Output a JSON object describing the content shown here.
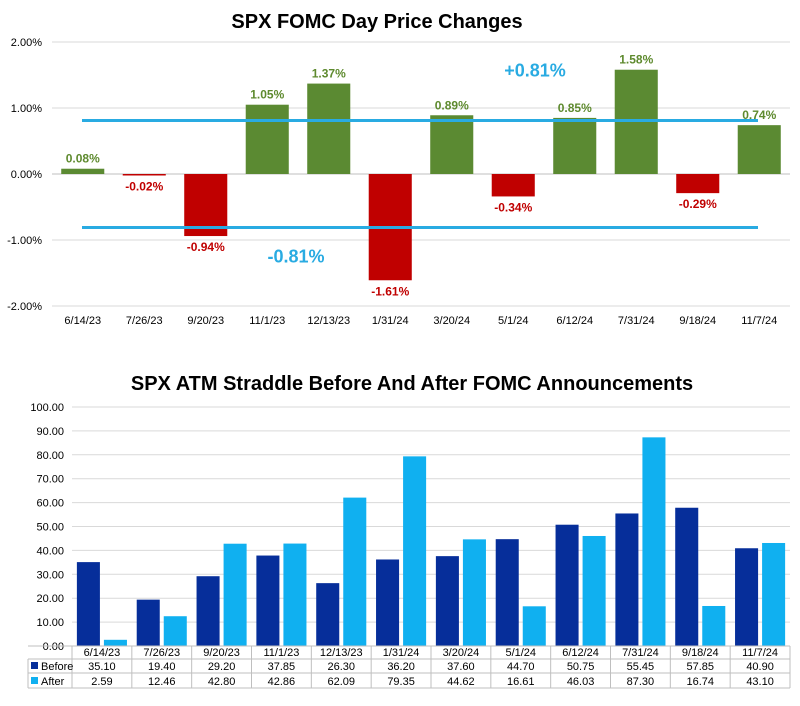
{
  "colors": {
    "positive": "#5b8a32",
    "negative": "#c00000",
    "positive_label": "#5e8a2e",
    "negative_label": "#c00000",
    "ref_line": "#29abe2",
    "ref_text": "#29abe2",
    "before": "#062e9a",
    "after": "#10b0f0",
    "grid": "#d9d9d9",
    "axis": "#bfbfbf"
  },
  "chart_data": [
    {
      "type": "bar",
      "title": "SPX FOMC Day Price Changes",
      "categories": [
        "6/14/23",
        "7/26/23",
        "9/20/23",
        "11/1/23",
        "12/13/23",
        "1/31/24",
        "3/20/24",
        "5/1/24",
        "6/12/24",
        "7/31/24",
        "9/18/24",
        "11/7/24"
      ],
      "values": [
        0.08,
        -0.02,
        -0.94,
        1.05,
        1.37,
        -1.61,
        0.89,
        -0.34,
        0.85,
        1.58,
        -0.29,
        0.74
      ],
      "value_labels": [
        "0.08%",
        "-0.02%",
        "-0.94%",
        "1.05%",
        "1.37%",
        "-1.61%",
        "0.89%",
        "-0.34%",
        "0.85%",
        "1.58%",
        "-0.29%",
        "0.74%"
      ],
      "ylim": [
        -2.0,
        2.0
      ],
      "yticks": [
        2.0,
        1.0,
        0.0,
        -1.0,
        -2.0
      ],
      "ytick_labels": [
        "2.00%",
        "1.00%",
        "0.00%",
        "-1.00%",
        "-2.00%"
      ],
      "reference_lines": [
        {
          "value": 0.81,
          "label": "+0.81%"
        },
        {
          "value": -0.81,
          "label": "-0.81%"
        }
      ],
      "xlabel": "",
      "ylabel": ""
    },
    {
      "type": "bar",
      "title": "SPX ATM Straddle Before And After FOMC Announcements",
      "categories": [
        "6/14/23",
        "7/26/23",
        "9/20/23",
        "11/1/23",
        "12/13/23",
        "1/31/24",
        "3/20/24",
        "5/1/24",
        "6/12/24",
        "7/31/24",
        "9/18/24",
        "11/7/24"
      ],
      "series": [
        {
          "name": "Before",
          "values": [
            35.1,
            19.4,
            29.2,
            37.85,
            26.3,
            36.2,
            37.6,
            44.7,
            50.75,
            55.45,
            57.85,
            40.9
          ],
          "labels": [
            "35.10",
            "19.40",
            "29.20",
            "37.85",
            "26.30",
            "36.20",
            "37.60",
            "44.70",
            "50.75",
            "55.45",
            "57.85",
            "40.90"
          ]
        },
        {
          "name": "After",
          "values": [
            2.59,
            12.46,
            42.8,
            42.86,
            62.09,
            79.35,
            44.62,
            16.61,
            46.03,
            87.3,
            16.74,
            43.1
          ],
          "labels": [
            "2.59",
            "12.46",
            "42.80",
            "42.86",
            "62.09",
            "79.35",
            "44.62",
            "16.61",
            "46.03",
            "87.30",
            "16.74",
            "43.10"
          ]
        }
      ],
      "ylim": [
        0,
        100
      ],
      "yticks": [
        100,
        90,
        80,
        70,
        60,
        50,
        40,
        30,
        20,
        10,
        0
      ],
      "ytick_labels": [
        "100.00",
        "90.00",
        "80.00",
        "70.00",
        "60.00",
        "50.00",
        "40.00",
        "30.00",
        "20.00",
        "10.00",
        "0.00"
      ],
      "data_table": true,
      "xlabel": "",
      "ylabel": ""
    }
  ]
}
